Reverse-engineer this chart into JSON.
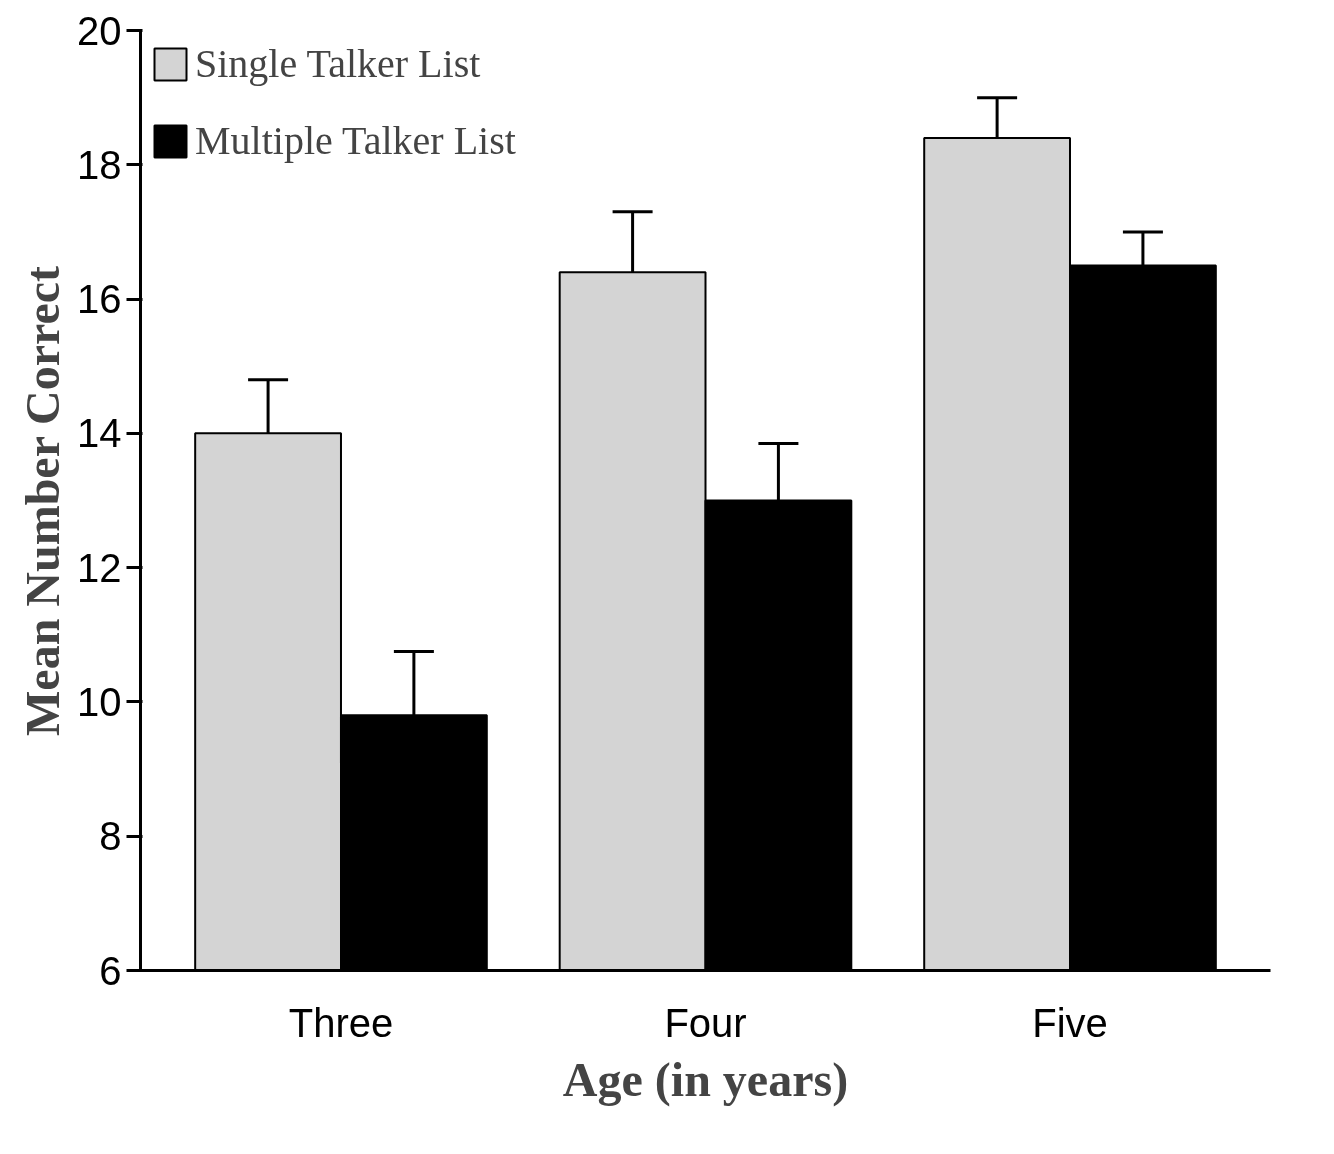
{
  "chart_data": {
    "type": "bar",
    "xlabel": "Age (in years)",
    "ylabel": "Mean Number Correct",
    "categories": [
      "Three",
      "Four",
      "Five"
    ],
    "series": [
      {
        "name": "Single Talker List",
        "color": "#d4d4d4",
        "values": [
          14.0,
          16.4,
          18.4
        ],
        "errors": [
          [
            14.0,
            14.8
          ],
          [
            16.4,
            17.3
          ],
          [
            18.4,
            19.0
          ]
        ]
      },
      {
        "name": "Multiple Talker List",
        "color": "#000000",
        "values": [
          9.8,
          13.0,
          16.5
        ],
        "errors": [
          [
            9.8,
            10.75
          ],
          [
            13.0,
            13.85
          ],
          [
            16.5,
            17.0
          ]
        ]
      }
    ],
    "ylim": [
      6,
      20
    ],
    "yticks": [
      6,
      8,
      10,
      12,
      14,
      16,
      18,
      20
    ],
    "grid": false,
    "legend": "top left"
  }
}
